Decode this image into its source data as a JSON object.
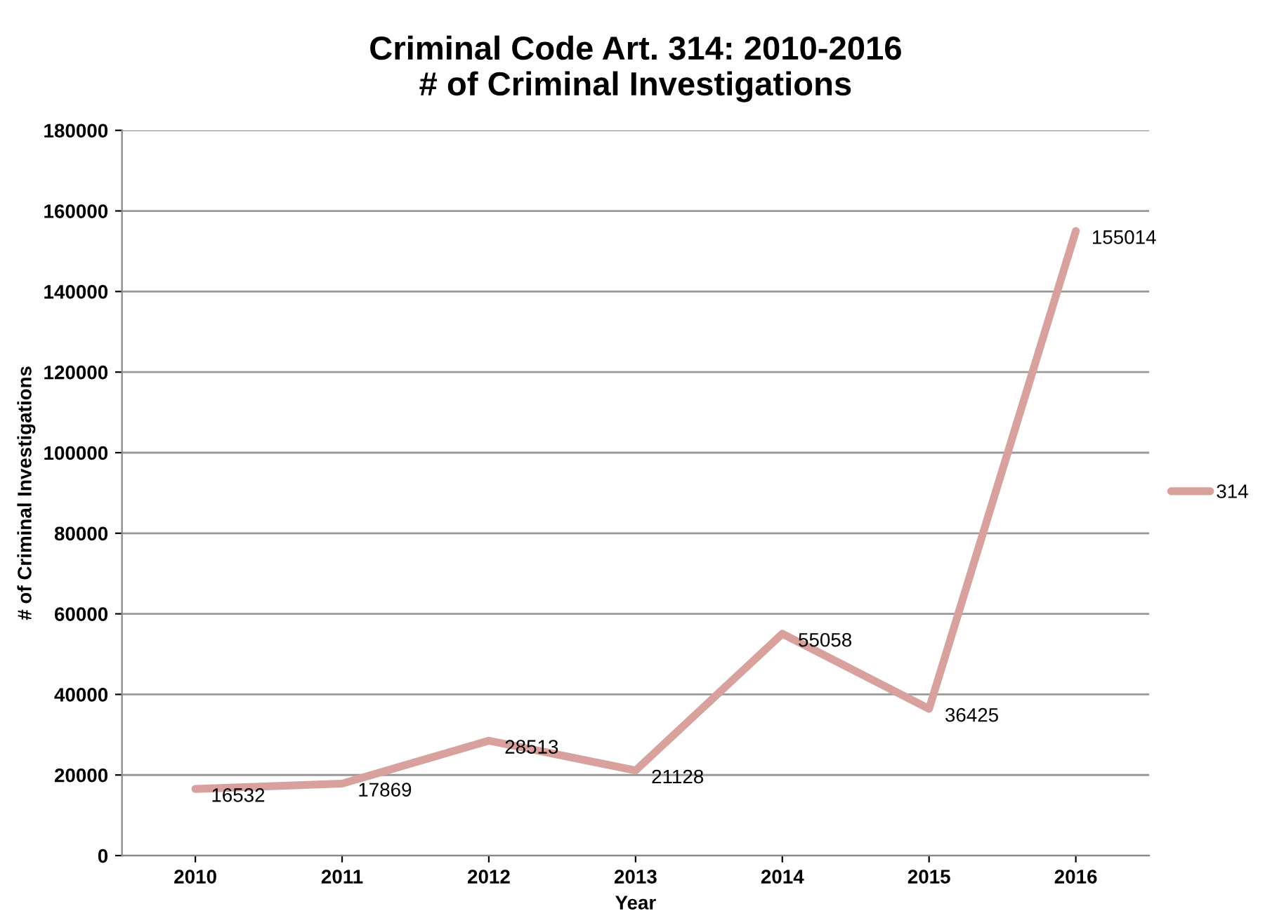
{
  "chart_data": {
    "type": "line",
    "title": "Criminal Code Art. 314: 2010-2016\n# of Criminal Investigations",
    "xlabel": "Year",
    "ylabel": "# of Criminal Investigations",
    "categories": [
      "2010",
      "2011",
      "2012",
      "2013",
      "2014",
      "2015",
      "2016"
    ],
    "series": [
      {
        "name": "314",
        "color": "#d9a19e",
        "values": [
          16532,
          17869,
          28513,
          21128,
          55058,
          36425,
          155014
        ]
      }
    ],
    "ylim": [
      0,
      180000
    ],
    "yticks": [
      0,
      20000,
      40000,
      60000,
      80000,
      100000,
      120000,
      140000,
      160000,
      180000
    ],
    "grid": "y",
    "legend": "right",
    "data_labels": true,
    "marker": "none",
    "line_style": "solid"
  }
}
